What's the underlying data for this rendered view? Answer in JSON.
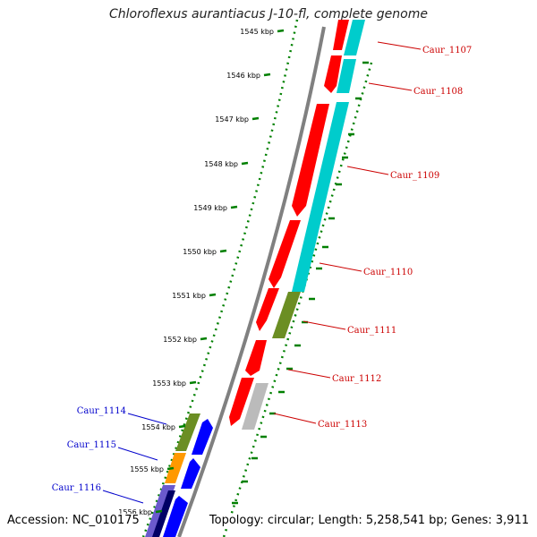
{
  "title": "Chloroflexus aurantiacus J-10-fl, complete genome",
  "footer": {
    "accession": "Accession: NC_010175",
    "summary": "Topology: circular; Length: 5,258,541 bp; Genes: 3,911"
  },
  "colors": {
    "forward_label": "#cc0000",
    "reverse_label": "#0000cc",
    "backbone": "#808080",
    "ruler": "#008000",
    "cds_forward": "#ff0000",
    "cds_reverse": "#0000ff",
    "cog_teal": "#00cccc",
    "cog_olive": "#6b8e23",
    "cog_orange": "#ff9900",
    "cog_grey": "#bbbbbb",
    "cog_purple": "#6a5acd"
  },
  "ruler_ticks": [
    "1545 kbp",
    "1546 kbp",
    "1547 kbp",
    "1548 kbp",
    "1549 kbp",
    "1550 kbp",
    "1551 kbp",
    "1552 kbp",
    "1553 kbp",
    "1554 kbp",
    "1555 kbp",
    "1556 kbp"
  ],
  "genes_forward": [
    "Caur_1107",
    "Caur_1108",
    "Caur_1109",
    "Caur_1110",
    "Caur_1111",
    "Caur_1112",
    "Caur_1113"
  ],
  "genes_reverse": [
    "Caur_1114",
    "Caur_1115",
    "Caur_1116"
  ]
}
